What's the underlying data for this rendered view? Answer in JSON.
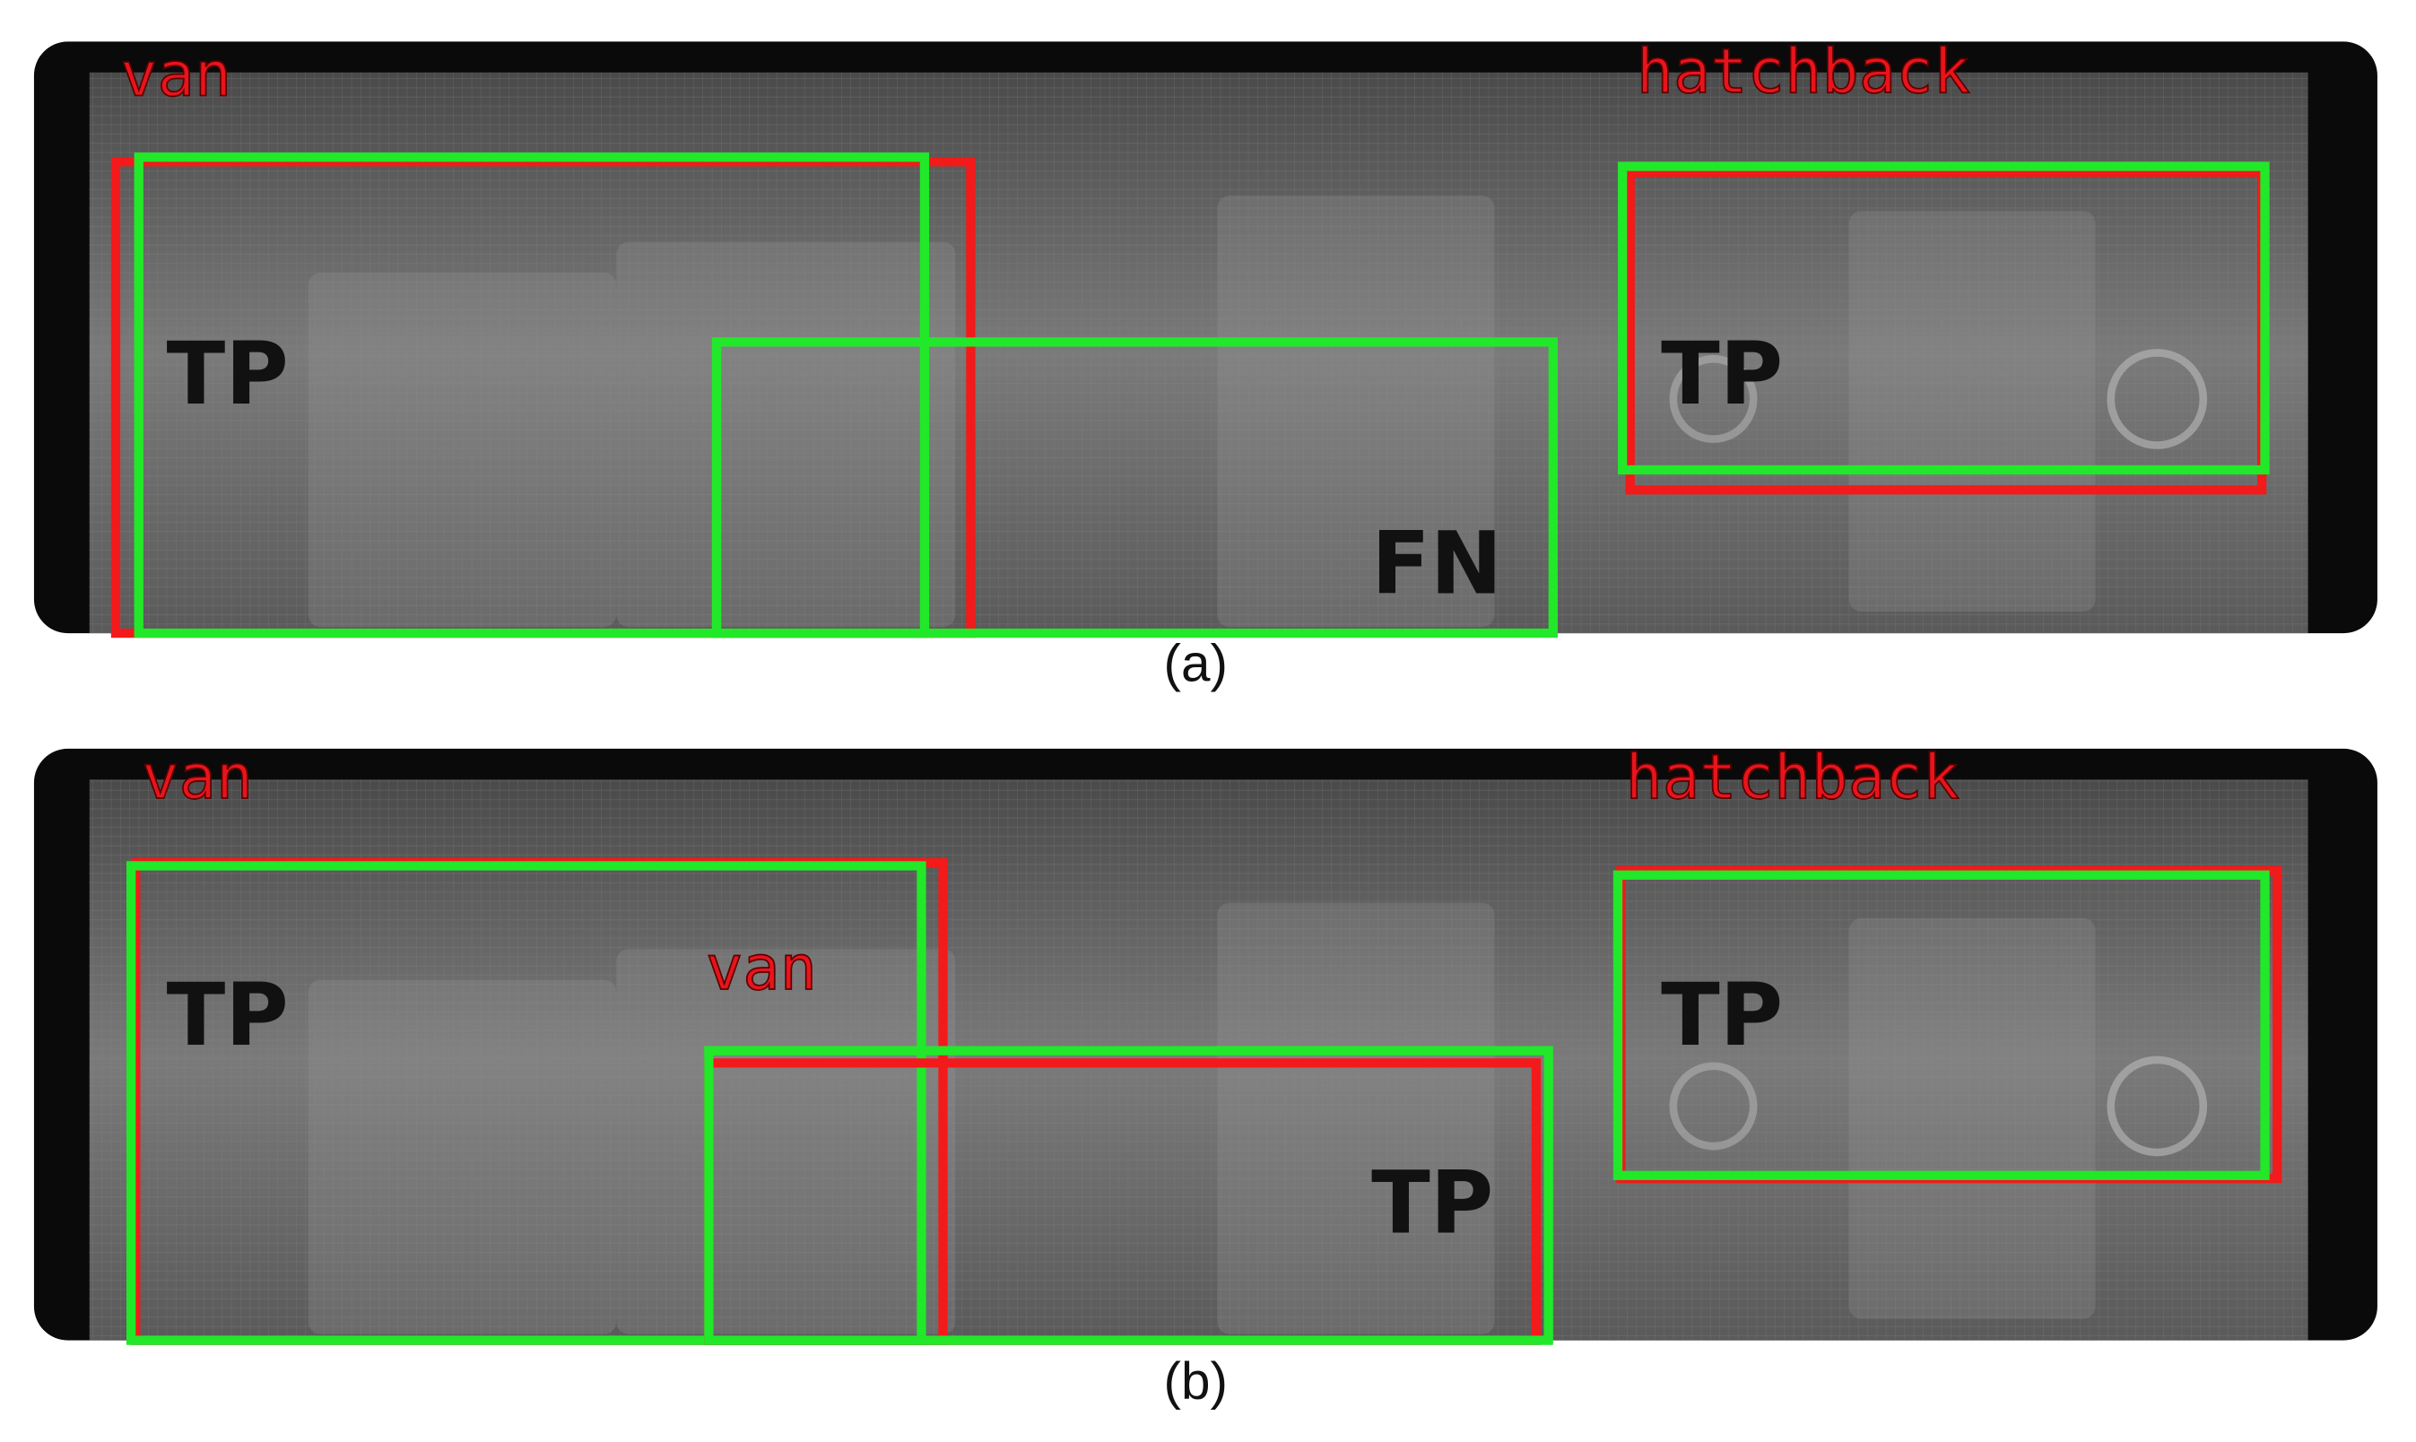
{
  "panels": [
    {
      "caption": "(a)",
      "class_labels": [
        "van",
        "hatchback"
      ],
      "annotations": [
        "TP",
        "FN",
        "TP"
      ]
    },
    {
      "caption": "(b)",
      "class_labels": [
        "van",
        "van",
        "hatchback"
      ],
      "annotations": [
        "TP",
        "TP",
        "TP"
      ]
    }
  ]
}
